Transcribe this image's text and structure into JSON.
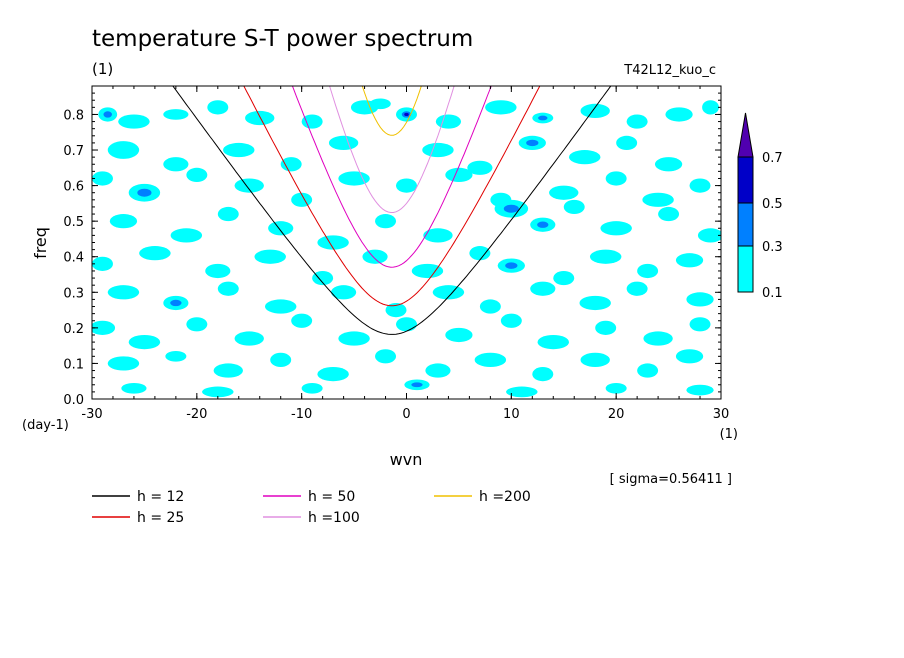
{
  "chart_data": {
    "type": "heatmap",
    "title": "temperature S-T power spectrum",
    "subtitle_left": "(1)",
    "subtitle_right": "T42L12_kuo_c",
    "xlabel": "wvn",
    "ylabel": "freq",
    "x_unit": "(1)",
    "y_unit": "(day-1)",
    "xlim": [
      -30,
      30
    ],
    "ylim": [
      0,
      0.88
    ],
    "x_ticks": [
      -30,
      -20,
      -10,
      0,
      10,
      20,
      30
    ],
    "x_tick_labels": [
      "-30",
      "-20",
      "-10",
      "0",
      "10",
      "20",
      "30"
    ],
    "y_ticks": [
      0,
      0.1,
      0.2,
      0.3,
      0.4,
      0.5,
      0.6,
      0.7,
      0.8
    ],
    "y_tick_labels": [
      "0.0",
      "0.1",
      "0.2",
      "0.3",
      "0.4",
      "0.5",
      "0.6",
      "0.7",
      "0.8"
    ],
    "sigma_label": "[ sigma=0.56411 ]",
    "colorbar": {
      "levels": [
        "0.1",
        "0.3",
        "0.5",
        "0.7"
      ],
      "colors": [
        "#00ffff",
        "#0080ff",
        "#0000c8",
        "#5000b0"
      ]
    },
    "curves": [
      {
        "label": "h = 12",
        "h": 12,
        "color": "#000000"
      },
      {
        "label": "h = 25",
        "h": 25,
        "color": "#e00000"
      },
      {
        "label": "h = 50",
        "h": 50,
        "color": "#e000c0"
      },
      {
        "label": "h =100",
        "h": 100,
        "color": "#e090e0"
      },
      {
        "label": "h =200",
        "h": 200,
        "color": "#f0c000"
      }
    ],
    "patches": [
      [
        -28.5,
        0.8,
        0.9,
        0.02,
        2
      ],
      [
        -26,
        0.78,
        1.5,
        0.02,
        1
      ],
      [
        -22,
        0.8,
        1.2,
        0.015,
        1
      ],
      [
        -18,
        0.82,
        1,
        0.02,
        1
      ],
      [
        -14,
        0.79,
        1.4,
        0.02,
        1
      ],
      [
        -9,
        0.78,
        1,
        0.02,
        1
      ],
      [
        -4,
        0.82,
        1.3,
        0.02,
        1
      ],
      [
        0,
        0.8,
        1,
        0.02,
        3
      ],
      [
        4,
        0.78,
        1.2,
        0.02,
        1
      ],
      [
        9,
        0.82,
        1.5,
        0.02,
        1
      ],
      [
        13,
        0.79,
        1,
        0.015,
        2
      ],
      [
        18,
        0.81,
        1.4,
        0.02,
        1
      ],
      [
        22,
        0.78,
        1,
        0.02,
        1
      ],
      [
        26,
        0.8,
        1.3,
        0.02,
        1
      ],
      [
        29,
        0.82,
        0.8,
        0.02,
        1
      ],
      [
        -27,
        0.7,
        1.5,
        0.025,
        1
      ],
      [
        -22,
        0.66,
        1.2,
        0.02,
        1
      ],
      [
        -16,
        0.7,
        1.5,
        0.02,
        1
      ],
      [
        -11,
        0.66,
        1,
        0.02,
        1
      ],
      [
        -6,
        0.72,
        1.4,
        0.02,
        1
      ],
      [
        3,
        0.7,
        1.5,
        0.02,
        1
      ],
      [
        7,
        0.65,
        1.2,
        0.02,
        1
      ],
      [
        12,
        0.72,
        1.3,
        0.02,
        2
      ],
      [
        17,
        0.68,
        1.5,
        0.02,
        1
      ],
      [
        21,
        0.72,
        1,
        0.02,
        1
      ],
      [
        25,
        0.66,
        1.3,
        0.02,
        1
      ],
      [
        -29,
        0.62,
        1,
        0.02,
        1
      ],
      [
        -25,
        0.58,
        1.5,
        0.025,
        2
      ],
      [
        -20,
        0.63,
        1,
        0.02,
        1
      ],
      [
        -15,
        0.6,
        1.4,
        0.02,
        1
      ],
      [
        -10,
        0.56,
        1,
        0.02,
        1
      ],
      [
        -5,
        0.62,
        1.5,
        0.02,
        1
      ],
      [
        0,
        0.6,
        1,
        0.02,
        1
      ],
      [
        5,
        0.63,
        1.3,
        0.02,
        1
      ],
      [
        9,
        0.56,
        1,
        0.02,
        1
      ],
      [
        15,
        0.58,
        1.4,
        0.02,
        1
      ],
      [
        20,
        0.62,
        1,
        0.02,
        1
      ],
      [
        24,
        0.56,
        1.5,
        0.02,
        1
      ],
      [
        28,
        0.6,
        1,
        0.02,
        1
      ],
      [
        -27,
        0.5,
        1.3,
        0.02,
        1
      ],
      [
        -21,
        0.46,
        1.5,
        0.02,
        1
      ],
      [
        -17,
        0.52,
        1,
        0.02,
        1
      ],
      [
        -12,
        0.48,
        1.2,
        0.02,
        1
      ],
      [
        -7,
        0.44,
        1.5,
        0.02,
        1
      ],
      [
        -2,
        0.5,
        1,
        0.02,
        1
      ],
      [
        3,
        0.46,
        1.4,
        0.02,
        1
      ],
      [
        10,
        0.535,
        1.6,
        0.025,
        2
      ],
      [
        13,
        0.49,
        1.2,
        0.02,
        2
      ],
      [
        16,
        0.54,
        1,
        0.02,
        1
      ],
      [
        20,
        0.48,
        1.5,
        0.02,
        1
      ],
      [
        25,
        0.52,
        1,
        0.02,
        1
      ],
      [
        29,
        0.46,
        1.2,
        0.02,
        1
      ],
      [
        -29,
        0.38,
        1,
        0.02,
        1
      ],
      [
        -24,
        0.41,
        1.5,
        0.02,
        1
      ],
      [
        -18,
        0.36,
        1.2,
        0.02,
        1
      ],
      [
        -13,
        0.4,
        1.5,
        0.02,
        1
      ],
      [
        -8,
        0.34,
        1,
        0.02,
        1
      ],
      [
        -3,
        0.4,
        1.2,
        0.02,
        1
      ],
      [
        2,
        0.36,
        1.5,
        0.02,
        1
      ],
      [
        7,
        0.41,
        1,
        0.02,
        1
      ],
      [
        10,
        0.375,
        1.3,
        0.02,
        2
      ],
      [
        15,
        0.34,
        1,
        0.02,
        1
      ],
      [
        19,
        0.4,
        1.5,
        0.02,
        1
      ],
      [
        23,
        0.36,
        1,
        0.02,
        1
      ],
      [
        27,
        0.39,
        1.3,
        0.02,
        1
      ],
      [
        -27,
        0.3,
        1.5,
        0.02,
        1
      ],
      [
        -22,
        0.27,
        1.2,
        0.02,
        2
      ],
      [
        -17,
        0.31,
        1,
        0.02,
        1
      ],
      [
        -12,
        0.26,
        1.5,
        0.02,
        1
      ],
      [
        -6,
        0.3,
        1.2,
        0.02,
        1
      ],
      [
        -1,
        0.25,
        1,
        0.02,
        1
      ],
      [
        4,
        0.3,
        1.5,
        0.02,
        1
      ],
      [
        8,
        0.26,
        1,
        0.02,
        1
      ],
      [
        13,
        0.31,
        1.2,
        0.02,
        1
      ],
      [
        18,
        0.27,
        1.5,
        0.02,
        1
      ],
      [
        22,
        0.31,
        1,
        0.02,
        1
      ],
      [
        28,
        0.28,
        1.3,
        0.02,
        1
      ],
      [
        -29,
        0.2,
        1.2,
        0.02,
        1
      ],
      [
        -25,
        0.16,
        1.5,
        0.02,
        1
      ],
      [
        -20,
        0.21,
        1,
        0.02,
        1
      ],
      [
        -15,
        0.17,
        1.4,
        0.02,
        1
      ],
      [
        -10,
        0.22,
        1,
        0.02,
        1
      ],
      [
        -5,
        0.17,
        1.5,
        0.02,
        1
      ],
      [
        0,
        0.21,
        1,
        0.02,
        1
      ],
      [
        5,
        0.18,
        1.3,
        0.02,
        1
      ],
      [
        10,
        0.22,
        1,
        0.02,
        1
      ],
      [
        14,
        0.16,
        1.5,
        0.02,
        1
      ],
      [
        19,
        0.2,
        1,
        0.02,
        1
      ],
      [
        24,
        0.17,
        1.4,
        0.02,
        1
      ],
      [
        28,
        0.21,
        1,
        0.02,
        1
      ],
      [
        -27,
        0.1,
        1.5,
        0.02,
        1
      ],
      [
        -22,
        0.12,
        1,
        0.015,
        1
      ],
      [
        -17,
        0.08,
        1.4,
        0.02,
        1
      ],
      [
        -12,
        0.11,
        1,
        0.02,
        1
      ],
      [
        -7,
        0.07,
        1.5,
        0.02,
        1
      ],
      [
        -2,
        0.12,
        1,
        0.02,
        1
      ],
      [
        3,
        0.08,
        1.2,
        0.02,
        1
      ],
      [
        8,
        0.11,
        1.5,
        0.02,
        1
      ],
      [
        13,
        0.07,
        1,
        0.02,
        1
      ],
      [
        18,
        0.11,
        1.4,
        0.02,
        1
      ],
      [
        23,
        0.08,
        1,
        0.02,
        1
      ],
      [
        27,
        0.12,
        1.3,
        0.02,
        1
      ],
      [
        -26,
        0.03,
        1.2,
        0.015,
        1
      ],
      [
        -18,
        0.02,
        1.5,
        0.015,
        1
      ],
      [
        -9,
        0.03,
        1,
        0.015,
        1
      ],
      [
        1,
        0.04,
        1.2,
        0.015,
        2
      ],
      [
        11,
        0.02,
        1.5,
        0.015,
        1
      ],
      [
        20,
        0.03,
        1,
        0.015,
        1
      ],
      [
        28,
        0.025,
        1.3,
        0.015,
        1
      ],
      [
        -2.5,
        0.83,
        1,
        0.015,
        1
      ]
    ]
  },
  "legend_title": ""
}
